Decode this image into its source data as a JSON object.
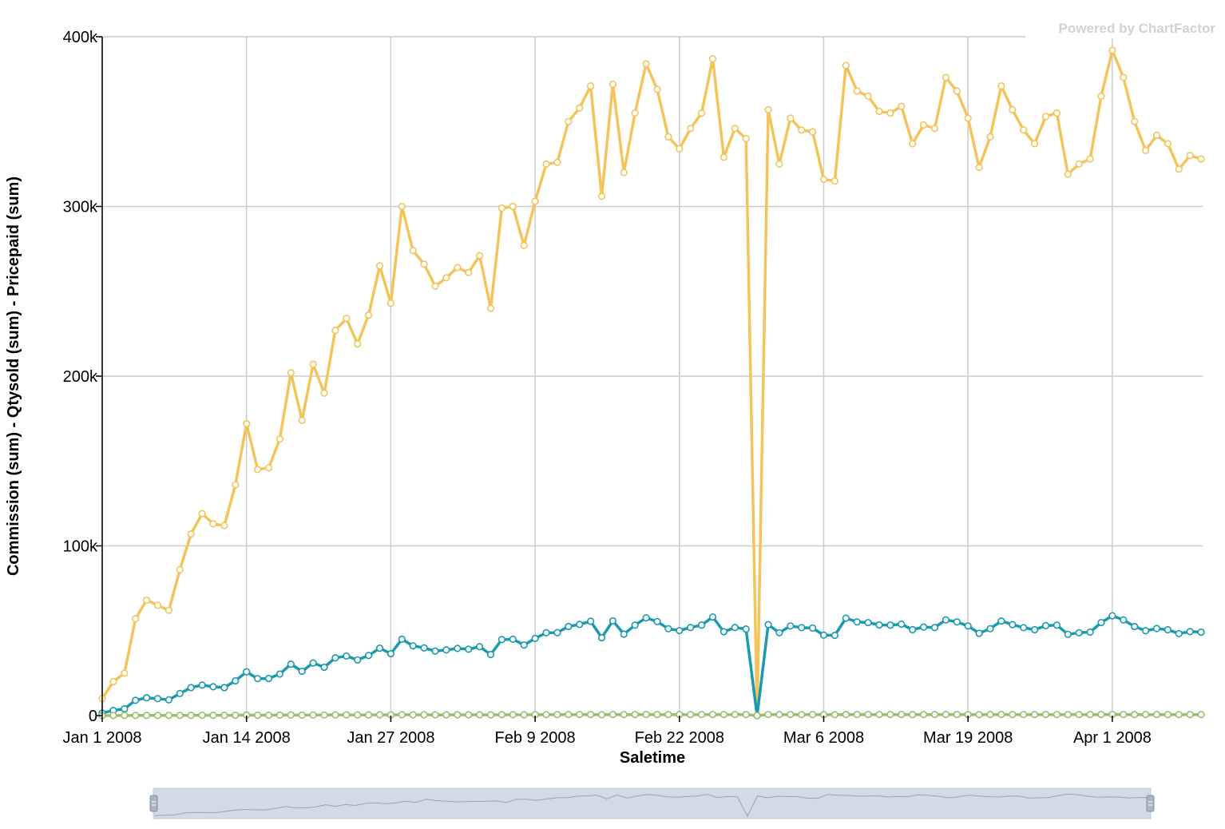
{
  "watermark": "Powered by ChartFactor",
  "colors": {
    "pricepaid": "#f2c45a",
    "commission": "#1a9aaf",
    "qtysold": "#9bbd6c",
    "grid": "#cccccc",
    "brush_fill": "#d3dae5",
    "brush_line": "#9aa3b2"
  },
  "chart_data": {
    "type": "line",
    "title": "",
    "xlabel": "Saletime",
    "ylabel": "Commission (sum) - Qtysold (sum) - Pricepaid (sum)",
    "x_start": "2008-01-01",
    "x_step_days": 1,
    "ylim": [
      0,
      400000
    ],
    "yticks": [
      0,
      100000,
      200000,
      300000,
      400000
    ],
    "ytick_labels": [
      "0",
      "100k",
      "200k",
      "300k",
      "400k"
    ],
    "xticks": [
      0,
      13,
      26,
      39,
      52,
      65,
      78,
      91
    ],
    "xtick_labels": [
      "Jan 1 2008",
      "Jan 14 2008",
      "Jan 27 2008",
      "Feb 9 2008",
      "Feb 22 2008",
      "Mar 6 2008",
      "Mar 19 2008",
      "Apr 1 2008"
    ],
    "grid": true,
    "series": [
      {
        "name": "Pricepaid (sum)",
        "key": "pricepaid",
        "values": [
          10000,
          20000,
          25000,
          57000,
          68000,
          65000,
          62000,
          86000,
          107000,
          119000,
          113000,
          112000,
          136000,
          172000,
          145000,
          146000,
          163000,
          202000,
          174000,
          207000,
          190000,
          227000,
          234000,
          219000,
          236000,
          265000,
          243000,
          300000,
          274000,
          266000,
          253000,
          258000,
          264000,
          261000,
          271000,
          240000,
          299000,
          300000,
          277000,
          303000,
          325000,
          326000,
          350000,
          358000,
          371000,
          306000,
          372000,
          320000,
          355000,
          384000,
          369000,
          341000,
          334000,
          346000,
          355000,
          387000,
          329000,
          346000,
          340000,
          0,
          357000,
          325000,
          352000,
          345000,
          344000,
          316000,
          315000,
          383000,
          368000,
          365000,
          356000,
          355000,
          359000,
          337000,
          348000,
          346000,
          376000,
          368000,
          352000,
          323000,
          341000,
          371000,
          357000,
          345000,
          337000,
          353000,
          355000,
          319000,
          325000,
          328000,
          365000,
          392000,
          376000,
          350000,
          333000,
          342000,
          337000,
          322000,
          330000,
          328000
        ]
      },
      {
        "name": "Commission (sum)",
        "key": "commission",
        "values": [
          1500,
          3000,
          4000,
          9000,
          10500,
          10000,
          9300,
          13000,
          16500,
          18000,
          17000,
          16500,
          20500,
          25800,
          21800,
          21900,
          24500,
          30300,
          26100,
          31000,
          28500,
          34000,
          35100,
          32800,
          35400,
          39700,
          36500,
          45000,
          41100,
          39900,
          38000,
          38700,
          39600,
          39100,
          40600,
          36000,
          44800,
          45000,
          41600,
          45500,
          48800,
          48900,
          52500,
          53700,
          55600,
          45900,
          55800,
          48000,
          53300,
          57600,
          55400,
          51200,
          50100,
          51900,
          53300,
          58100,
          49400,
          51900,
          51000,
          0,
          53600,
          48800,
          52800,
          51800,
          51600,
          47400,
          47300,
          57400,
          55200,
          54800,
          53400,
          53300,
          53900,
          50600,
          52200,
          51900,
          56400,
          55200,
          52800,
          48500,
          51200,
          55700,
          53600,
          51800,
          50600,
          53000,
          53300,
          47900,
          48800,
          49200,
          54800,
          58800,
          56400,
          52500,
          50000,
          51300,
          50600,
          48300,
          49500,
          49200
        ]
      },
      {
        "name": "Qtysold (sum)",
        "key": "qtysold",
        "values": [
          18,
          35,
          45,
          100,
          120,
          115,
          110,
          150,
          190,
          210,
          200,
          198,
          240,
          300,
          255,
          256,
          285,
          355,
          305,
          365,
          335,
          400,
          410,
          385,
          415,
          465,
          425,
          525,
          480,
          468,
          445,
          453,
          463,
          458,
          475,
          420,
          525,
          527,
          487,
          532,
          570,
          572,
          615,
          628,
          651,
          537,
          653,
          562,
          623,
          674,
          648,
          598,
          586,
          607,
          623,
          680,
          578,
          607,
          597,
          0,
          627,
          571,
          618,
          606,
          604,
          555,
          553,
          672,
          646,
          641,
          625,
          623,
          630,
          592,
          611,
          607,
          660,
          646,
          618,
          567,
          599,
          651,
          627,
          606,
          592,
          620,
          623,
          560,
          571,
          576,
          641,
          688,
          660,
          614,
          585,
          600,
          592,
          565,
          579,
          576
        ]
      }
    ],
    "brush": {
      "overview_of": "Pricepaid (sum)",
      "range": [
        0,
        1
      ]
    }
  }
}
